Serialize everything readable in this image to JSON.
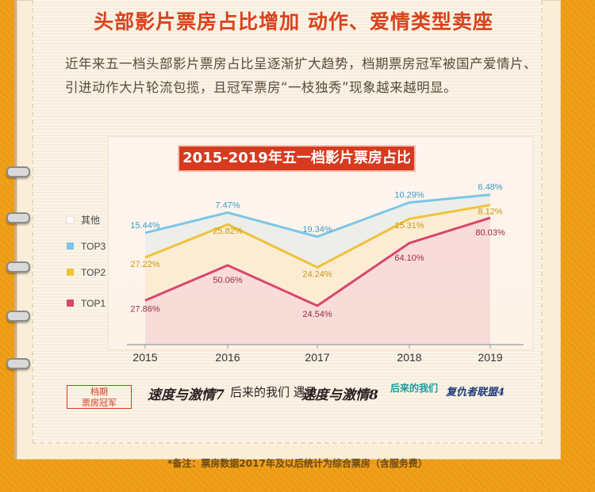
{
  "headline": "头部影片票房占比增加 动作、爱情类型卖座",
  "body_text": "近年来五一档头部影片票房占比呈逐渐扩大趋势，档期票房冠军被国产爱情片、引进动作大片轮流包揽，且冠军票房“一枝独秀”现象越来越明显。",
  "chart_title": "2015-2019年五一档影片票房占比",
  "bottom": {
    "label_line1": "档期",
    "label_line2": "票房冠军",
    "films": [
      "速度与激情7",
      "后来的我们 遇见",
      "速度与激情8",
      "后来的我们",
      "复仇者联盟4"
    ]
  },
  "footnote": "*备注：票房数据2017年及以后统计为综合票房（含服务费）",
  "colors": {
    "top1": "#d7476b",
    "top2": "#f0c23a",
    "top3": "#7cc6e6",
    "other": "#ffffff",
    "accent": "#d63a1f"
  },
  "chart_data": {
    "type": "line",
    "title": "2015-2019年五一档影片票房占比",
    "x": [
      "2015",
      "2016",
      "2017",
      "2018",
      "2019"
    ],
    "series": [
      {
        "name": "TOP1",
        "values": [
          27.86,
          50.06,
          24.54,
          64.1,
          80.03
        ],
        "labels": [
          "27.86%",
          "50.06%",
          "24.54%",
          "64.10%",
          "80.03%"
        ]
      },
      {
        "name": "TOP2",
        "values": [
          27.22,
          25.82,
          24.24,
          15.31,
          8.12
        ],
        "labels": [
          "27.22%",
          "25.82%",
          "24.24%",
          "15.31%",
          "8.12%"
        ]
      },
      {
        "name": "TOP3",
        "values": [
          15.44,
          7.47,
          19.34,
          10.29,
          6.48
        ],
        "labels": [
          "15.44%",
          "7.47%",
          "19.34%",
          "10.29%",
          "6.48%"
        ]
      },
      {
        "name": "其他",
        "values": [
          29.48,
          16.65,
          31.88,
          10.3,
          5.37
        ]
      }
    ],
    "stacked": true,
    "legend": [
      "其他",
      "TOP3",
      "TOP2",
      "TOP1"
    ],
    "legend_position": "left",
    "grid": false
  }
}
